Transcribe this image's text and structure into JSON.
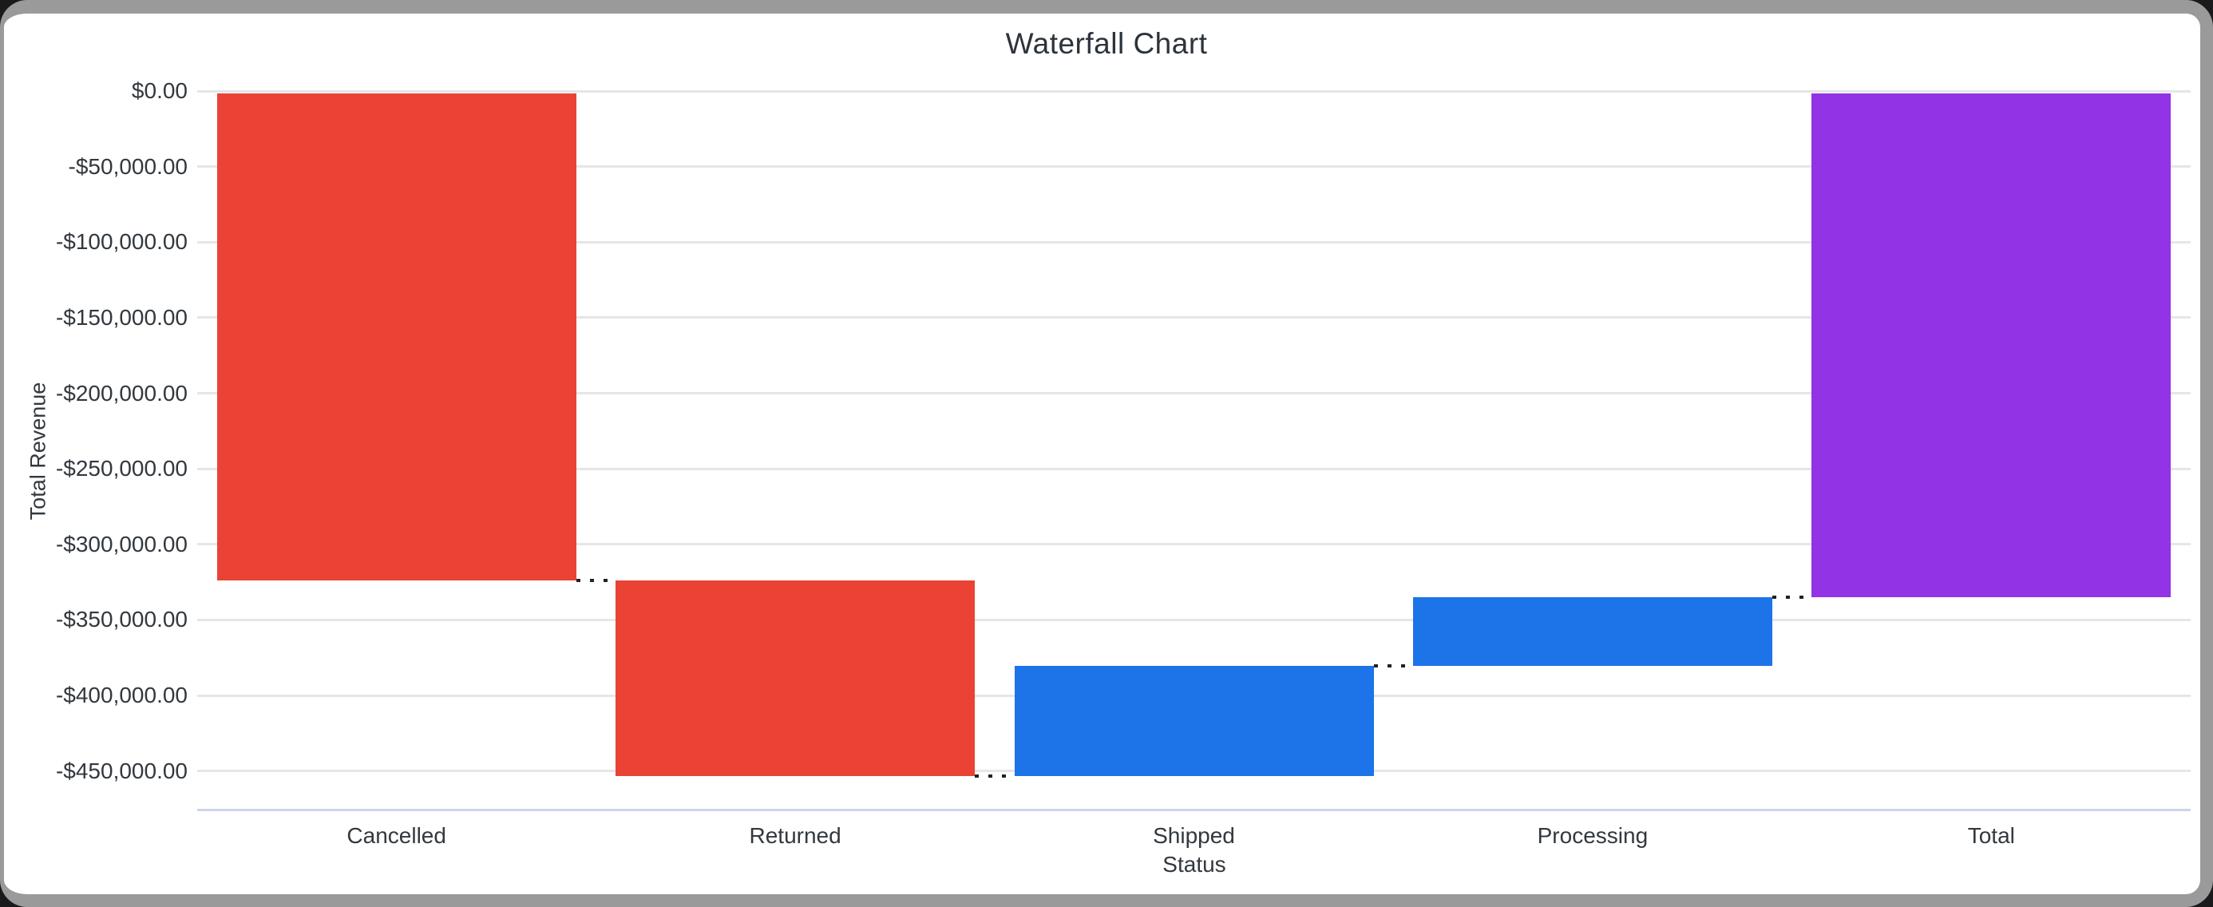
{
  "frame": {
    "border_color": "#9a9a9a",
    "page_background": "#1a1a1c",
    "card_background": "#ffffff"
  },
  "chart_data": {
    "type": "bar",
    "variant": "waterfall",
    "title": "Waterfall Chart",
    "xlabel": "Status",
    "ylabel": "Total Revenue",
    "categories": [
      "Cancelled",
      "Returned",
      "Shipped",
      "Processing",
      "Total"
    ],
    "series": [
      {
        "name": "Total Revenue",
        "segments": [
          {
            "category": "Cancelled",
            "from": 0,
            "to": -324000,
            "delta": -324000,
            "role": "decrease",
            "color": "#ea4335"
          },
          {
            "category": "Returned",
            "from": -324000,
            "to": -453600,
            "delta": -129600,
            "role": "decrease",
            "color": "#ea4335"
          },
          {
            "category": "Shipped",
            "from": -453600,
            "to": -380600,
            "delta": 73000,
            "role": "increase",
            "color": "#1d73e8"
          },
          {
            "category": "Processing",
            "from": -380600,
            "to": -335200,
            "delta": 45400,
            "role": "increase",
            "color": "#1d73e8"
          },
          {
            "category": "Total",
            "from": 0,
            "to": -335200,
            "delta": -335200,
            "role": "total",
            "color": "#9233e6"
          }
        ]
      }
    ],
    "ylim": [
      -475000,
      0
    ],
    "ytick_step": 50000,
    "ytick_labels": [
      "$0.00",
      "-$50,000.00",
      "-$100,000.00",
      "-$150,000.00",
      "-$200,000.00",
      "-$250,000.00",
      "-$300,000.00",
      "-$350,000.00",
      "-$400,000.00",
      "-$450,000.00"
    ],
    "grid": true,
    "legend": "none",
    "gridline_color": "#e6e6e6",
    "axis_line_color": "#ccd6eb",
    "connector_color": "#222222",
    "connector_style": "dotted",
    "title_color": "#2d333b",
    "text_color": "#32383e"
  }
}
